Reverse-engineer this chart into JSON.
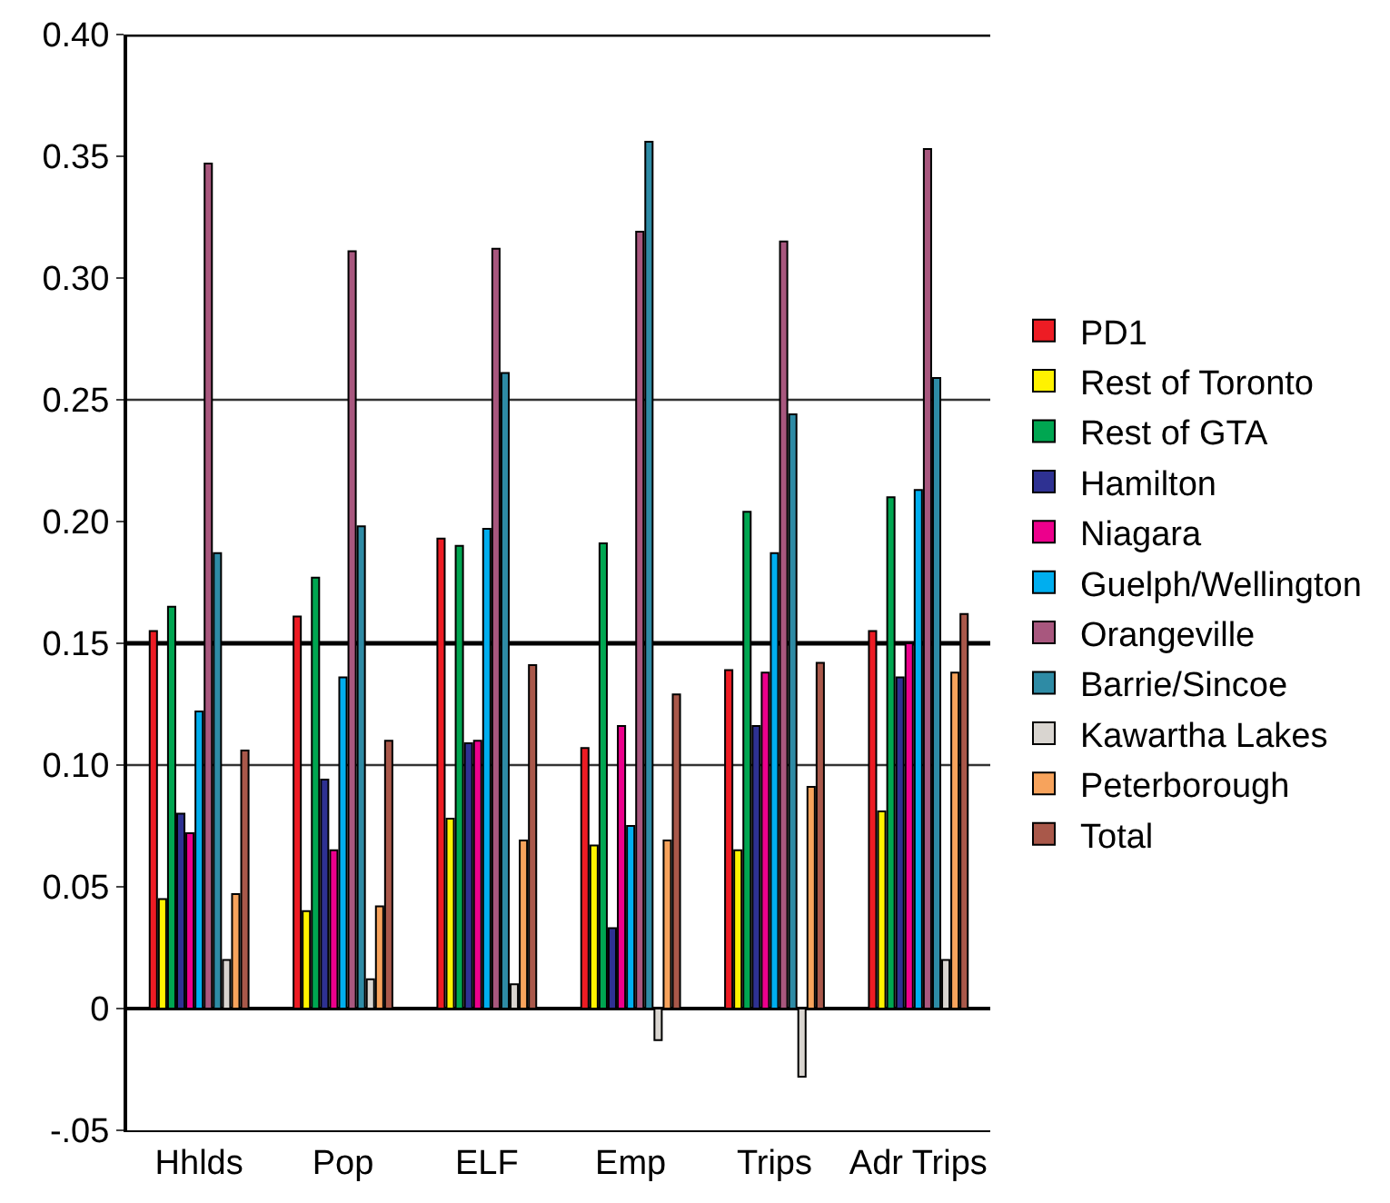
{
  "chart_data": {
    "type": "bar",
    "categories": [
      "Hhlds",
      "Pop",
      "ELF",
      "Emp",
      "Trips",
      "Adr Trips"
    ],
    "series": [
      {
        "name": "PD1",
        "color": "#ed1c24",
        "values": [
          0.155,
          0.161,
          0.193,
          0.107,
          0.139,
          0.155
        ]
      },
      {
        "name": "Rest of Toronto",
        "color": "#fff200",
        "values": [
          0.045,
          0.04,
          0.078,
          0.067,
          0.065,
          0.081
        ]
      },
      {
        "name": "Rest of GTA",
        "color": "#00a651",
        "values": [
          0.165,
          0.177,
          0.19,
          0.191,
          0.204,
          0.21
        ]
      },
      {
        "name": "Hamilton",
        "color": "#2e3192",
        "values": [
          0.08,
          0.094,
          0.109,
          0.033,
          0.116,
          0.136
        ]
      },
      {
        "name": "Niagara",
        "color": "#ec008c",
        "values": [
          0.072,
          0.065,
          0.11,
          0.116,
          0.138,
          0.15
        ]
      },
      {
        "name": "Guelph/Wellington",
        "color": "#00aeef",
        "values": [
          0.122,
          0.136,
          0.197,
          0.075,
          0.187,
          0.213
        ]
      },
      {
        "name": "Orangeville",
        "color": "#a8577e",
        "values": [
          0.347,
          0.311,
          0.312,
          0.319,
          0.315,
          0.353
        ]
      },
      {
        "name": "Barrie/Sincoe",
        "color": "#2e8ba5",
        "values": [
          0.187,
          0.198,
          0.261,
          0.356,
          0.244,
          0.259
        ]
      },
      {
        "name": "Kawartha Lakes",
        "color": "#d9d5d0",
        "values": [
          0.02,
          0.012,
          0.01,
          -0.013,
          -0.028,
          0.02
        ]
      },
      {
        "name": "Peterborough",
        "color": "#f7a35c",
        "values": [
          0.047,
          0.042,
          0.069,
          0.069,
          0.091,
          0.138
        ]
      },
      {
        "name": "Total",
        "color": "#a9584a",
        "values": [
          0.106,
          0.11,
          0.141,
          0.129,
          0.142,
          0.162
        ]
      }
    ],
    "ylim": [
      -0.05,
      0.4
    ],
    "yticks": [
      {
        "value": -0.05,
        "label": "-.05"
      },
      {
        "value": 0,
        "label": "0"
      },
      {
        "value": 0.05,
        "label": "0.05"
      },
      {
        "value": 0.1,
        "label": "0.10"
      },
      {
        "value": 0.15,
        "label": "0.15"
      },
      {
        "value": 0.2,
        "label": "0.20"
      },
      {
        "value": 0.25,
        "label": "0.25"
      },
      {
        "value": 0.3,
        "label": "0.30"
      },
      {
        "value": 0.35,
        "label": "0.35"
      },
      {
        "value": 0.4,
        "label": "0.40"
      }
    ],
    "ref_lines": [
      {
        "axis": "y",
        "value": 0.1,
        "color": "#333333"
      },
      {
        "axis": "y",
        "value": 0.15,
        "color": "#000000"
      },
      {
        "axis": "y",
        "value": 0.25,
        "color": "#333333"
      },
      {
        "axis": "y",
        "value": 0.4,
        "color": "#000000"
      }
    ],
    "grid": false,
    "legend": "right"
  }
}
